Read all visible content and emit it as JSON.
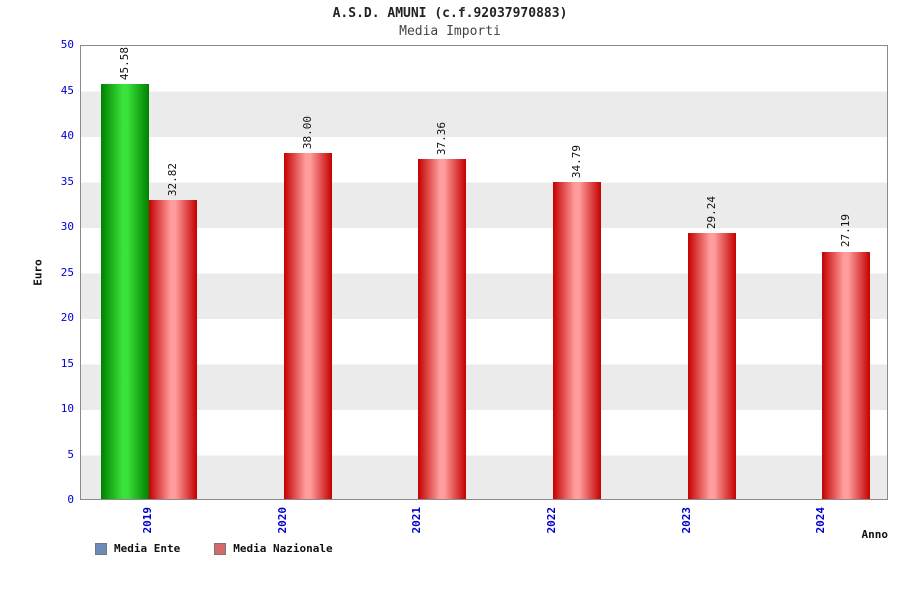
{
  "header": {
    "title": "A.S.D. AMUNI (c.f.92037970883)",
    "subtitle": "Media Importi"
  },
  "chart_data": {
    "type": "bar",
    "x": [
      "2019",
      "2020",
      "2021",
      "2022",
      "2023",
      "2024"
    ],
    "series": [
      {
        "name": "Media Ente",
        "values": [
          45.58,
          null,
          null,
          null,
          null,
          null
        ],
        "color_edge": "#008000",
        "color_mid": "#3ae23a",
        "legend_color": "#6b8cba"
      },
      {
        "name": "Media Nazionale",
        "values": [
          32.82,
          38.0,
          37.36,
          34.79,
          29.24,
          27.19
        ],
        "color_edge": "#c40000",
        "color_mid": "#ff9c9c",
        "legend_color": "#d46a6a"
      }
    ],
    "ylabel": "Euro",
    "xlabel": "Anno",
    "ylim": [
      0,
      50
    ],
    "ytick_step": 5,
    "grid": "horizontal-bands",
    "legend_position": "bottom-left",
    "value_label_decimals": 2,
    "tick_color": "#0000cc"
  }
}
